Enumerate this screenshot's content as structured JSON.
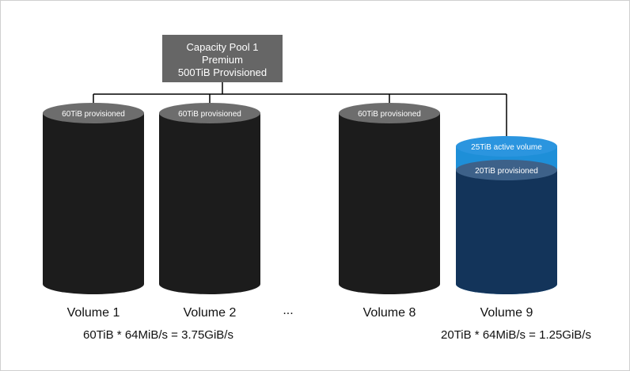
{
  "pool": {
    "line1": "Capacity Pool 1",
    "line2": "Premium",
    "line3": "500TiB Provisioned"
  },
  "volumes": [
    {
      "label": "Volume 1",
      "cap": "60TiB provisioned"
    },
    {
      "label": "Volume 2",
      "cap": "60TiB provisioned"
    },
    {
      "label": "Volume 8",
      "cap": "60TiB provisioned"
    },
    {
      "label": "Volume 9",
      "active": "25TiB active volume",
      "cap": "20TiB provisioned"
    }
  ],
  "ellipsis": "...",
  "calcs": {
    "left": "60TiB * 64MiB/s = 3.75GiB/s",
    "right": "20TiB * 64MiB/s = 1.25GiB/s"
  },
  "colors": {
    "pool_box": "#666666",
    "connector": "#000000",
    "cylinder_body": "#1c1c1c",
    "cylinder_cap": "#6d6d6d",
    "active_body": "#1e8fd8",
    "active_cap": "#2b95df",
    "provisioned_body": "#13345a",
    "provisioned_cap": "#3d6189"
  }
}
